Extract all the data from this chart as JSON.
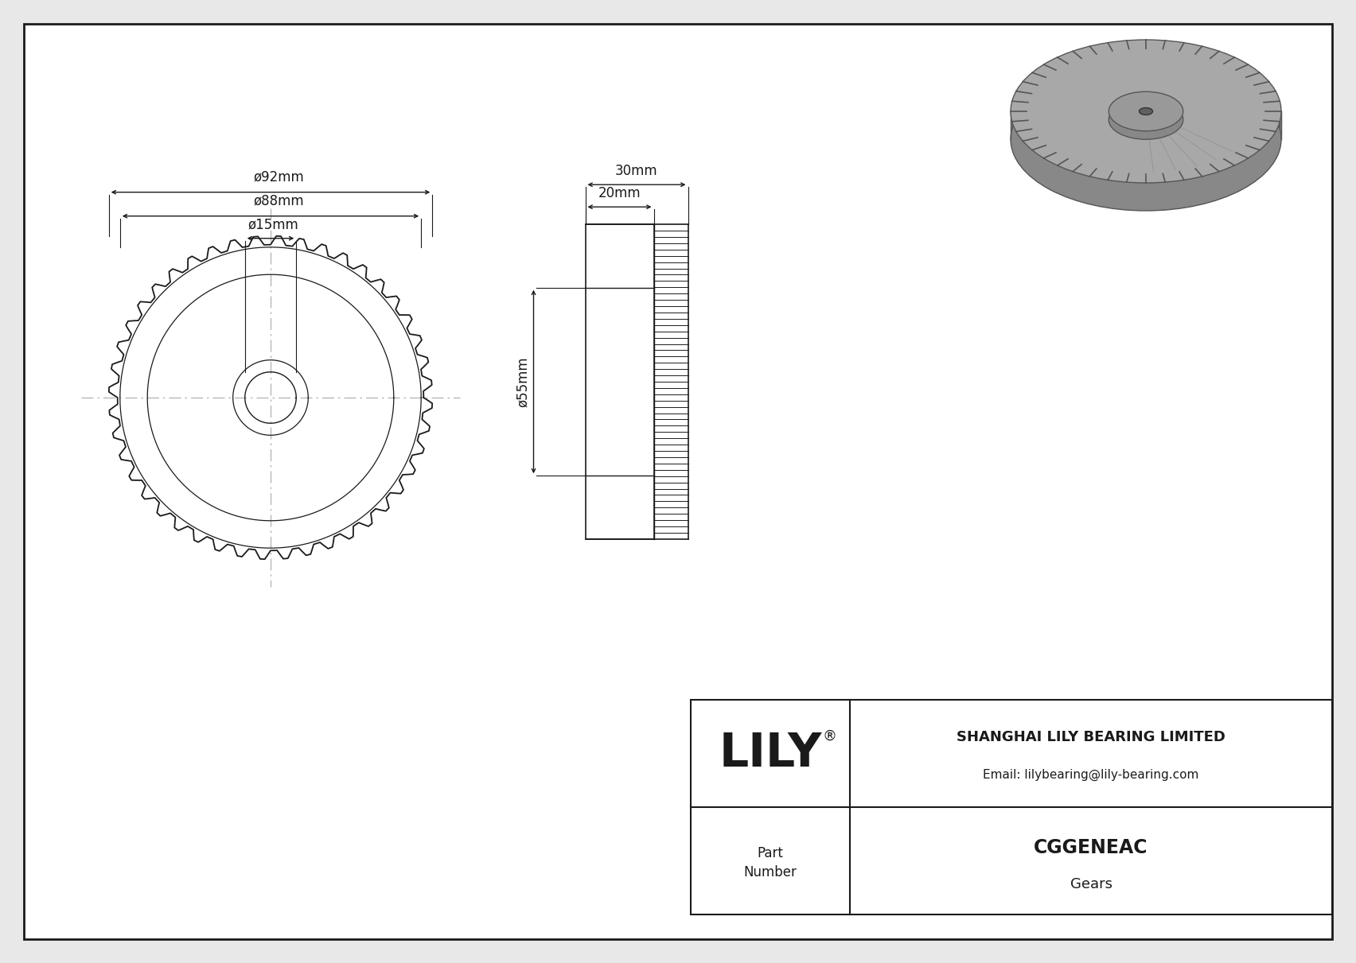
{
  "bg_color": "#e8e8e8",
  "drawing_bg": "#ffffff",
  "line_color": "#1a1a1a",
  "dim_color": "#1a1a1a",
  "centerline_color": "#b0b0b0",
  "title_company": "SHANGHAI LILY BEARING LIMITED",
  "title_email": "Email: lilybearing@lily-bearing.com",
  "title_part_label": "Part\nNumber",
  "title_part_number": "CGGENEAC",
  "title_part_type": "Gears",
  "title_logo": "LILY",
  "dim_d92": "ø92mm",
  "dim_d88": "ø88mm",
  "dim_d15": "ø15mm",
  "dim_30mm": "30mm",
  "dim_20mm": "20mm",
  "dim_d55": "ø55mm",
  "num_teeth": 44,
  "num_side_teeth": 50
}
